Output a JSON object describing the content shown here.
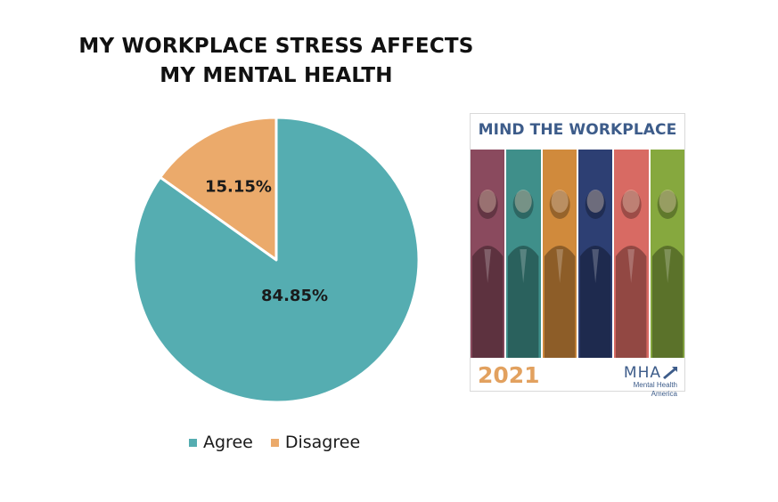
{
  "chart_data": {
    "type": "pie",
    "title_lines": [
      "MY WORKPLACE STRESS AFFECTS",
      "MY MENTAL HEALTH"
    ],
    "slices": [
      {
        "name": "Agree",
        "value": 84.85,
        "label": "84.85%",
        "color": "#55adb1"
      },
      {
        "name": "Disagree",
        "value": 15.15,
        "label": "15.15%",
        "color": "#ebaa6b"
      }
    ],
    "legend_position": "bottom"
  },
  "cover": {
    "title": "MIND THE WORKPLACE",
    "year": "2021",
    "logo_text": "MHA",
    "logo_subtitle": "Mental Health America",
    "strip_colors": [
      "#8a4a5e",
      "#3f8f8a",
      "#d08a3c",
      "#2d3f73",
      "#d86a63",
      "#86a83e"
    ]
  }
}
